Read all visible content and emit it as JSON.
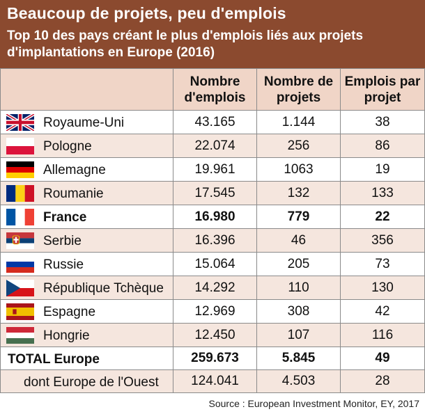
{
  "header": {
    "title": "Beaucoup de projets, peu d'emplois",
    "subtitle": "Top 10 des pays créant le plus d'emplois liés aux projets d'implantations en Europe (2016)"
  },
  "chart_data": {
    "type": "table",
    "columns": [
      "Nombre d'emplois",
      "Nombre de projets",
      "Emplois par projet"
    ],
    "rows": [
      {
        "country": "Royaume-Uni",
        "flag": "uk-flag",
        "emplois": "43.165",
        "projets": "1.144",
        "ratio": "38",
        "highlight": false
      },
      {
        "country": "Pologne",
        "flag": "poland-flag",
        "emplois": "22.074",
        "projets": "256",
        "ratio": "86",
        "highlight": false
      },
      {
        "country": "Allemagne",
        "flag": "germany-flag",
        "emplois": "19.961",
        "projets": "1063",
        "ratio": "19",
        "highlight": false
      },
      {
        "country": "Roumanie",
        "flag": "romania-flag",
        "emplois": "17.545",
        "projets": "132",
        "ratio": "133",
        "highlight": false
      },
      {
        "country": "France",
        "flag": "france-flag",
        "emplois": "16.980",
        "projets": "779",
        "ratio": "22",
        "highlight": true
      },
      {
        "country": "Serbie",
        "flag": "serbia-flag",
        "emplois": "16.396",
        "projets": "46",
        "ratio": "356",
        "highlight": false
      },
      {
        "country": "Russie",
        "flag": "russia-flag",
        "emplois": "15.064",
        "projets": "205",
        "ratio": "73",
        "highlight": false
      },
      {
        "country": "République Tchèque",
        "flag": "czech-flag",
        "emplois": "14.292",
        "projets": "110",
        "ratio": "130",
        "highlight": false
      },
      {
        "country": "Espagne",
        "flag": "spain-flag",
        "emplois": "12.969",
        "projets": "308",
        "ratio": "42",
        "highlight": false
      },
      {
        "country": "Hongrie",
        "flag": "hungary-flag",
        "emplois": "12.450",
        "projets": "107",
        "ratio": "116",
        "highlight": false
      }
    ],
    "total": {
      "label": "TOTAL Europe",
      "emplois": "259.673",
      "projets": "5.845",
      "ratio": "49"
    },
    "west": {
      "label": "dont Europe de l'Ouest",
      "emplois": "124.041",
      "projets": "4.503",
      "ratio": "28"
    }
  },
  "colors": {
    "header_bg": "#8b4a2f",
    "header_row_bg": "#f0d5c7",
    "stripe_bg": "#f5e6de"
  },
  "source": "Source : European Investment Monitor, EY, 2017"
}
